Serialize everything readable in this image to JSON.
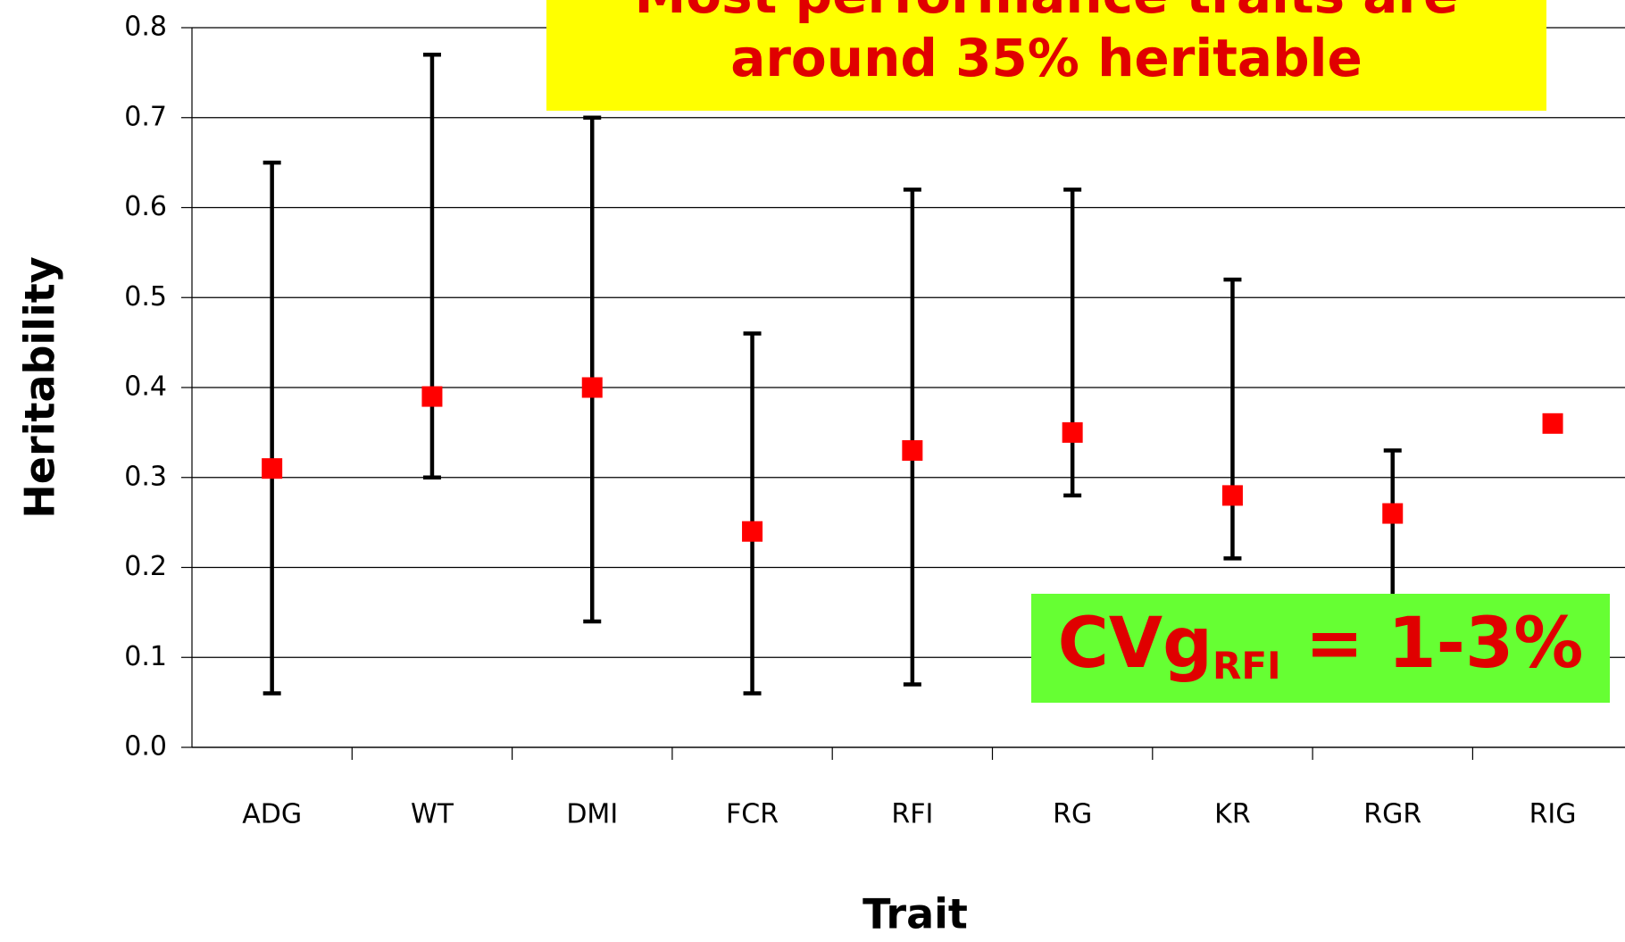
{
  "chart_data": {
    "type": "errorbar",
    "y_label": "Heritability",
    "x_label": "Trait",
    "categories": [
      "ADG",
      "WT",
      "DMI",
      "FCR",
      "RFI",
      "RG",
      "KR",
      "RGR",
      "RIG"
    ],
    "series": [
      {
        "name": "Heritability",
        "color": "#ff0000",
        "values": [
          0.31,
          0.39,
          0.4,
          0.24,
          0.33,
          0.35,
          0.28,
          0.26,
          0.36
        ],
        "low": [
          0.06,
          0.3,
          0.14,
          0.06,
          0.07,
          0.28,
          0.21,
          0.1,
          null
        ],
        "high": [
          0.65,
          0.77,
          0.7,
          0.46,
          0.62,
          0.62,
          0.52,
          0.33,
          null
        ]
      }
    ],
    "ylim": [
      0,
      0.8
    ],
    "yticks": [
      {
        "value": 0,
        "label": "0.0"
      },
      0.1,
      0.2,
      0.3,
      0.4,
      0.5,
      0.6,
      0.7,
      0.8
    ],
    "grid": true,
    "annotations": {
      "headline": [
        "Most performance traits are",
        "around 35% heritable"
      ],
      "headline_color": "#ffff00",
      "cv": {
        "main": "CVg",
        "sub": "RFI",
        "rest": " = 1-3%"
      },
      "cv_color": "#66ff33"
    }
  }
}
